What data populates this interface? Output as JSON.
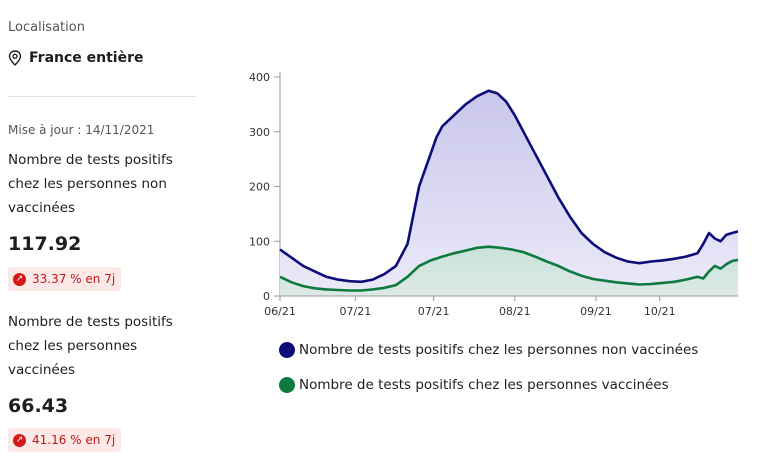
{
  "location": {
    "label": "Localisation",
    "value": "France entière",
    "icon": "map-pin-icon"
  },
  "update": "Mise à jour : 14/11/2021",
  "indicators": [
    {
      "title_lines": [
        "Nombre de tests positifs",
        "chez les personnes non",
        "vaccinées"
      ],
      "value": "117.92",
      "change": "33.37 % en 7j"
    },
    {
      "title_lines": [
        "Nombre de tests positifs",
        "chez les personnes",
        "vaccinées"
      ],
      "value": "66.43",
      "change": "41.16 % en 7j"
    }
  ],
  "colors": {
    "unvaccinated": "#0d0d7a",
    "vaccinated": "#0e7a3f",
    "unvaccinated_fill": "#c9c6ec",
    "vaccinated_fill": "#c9e2da",
    "badge_red": "#d21a1a"
  },
  "chart_data": {
    "type": "area",
    "ylim": [
      0,
      400
    ],
    "yticks": [
      0,
      100,
      200,
      300,
      400
    ],
    "xlim": [
      0,
      158
    ],
    "xticks": [
      {
        "label": "06/21",
        "x": 0
      },
      {
        "label": "07/21",
        "x": 26
      },
      {
        "label": "07/21",
        "x": 53
      },
      {
        "label": "08/21",
        "x": 81
      },
      {
        "label": "09/21",
        "x": 109
      },
      {
        "label": "10/21",
        "x": 131
      }
    ],
    "series": [
      {
        "name": "Nombre de tests positifs chez les personnes non vaccinées",
        "points": [
          [
            0,
            85
          ],
          [
            4,
            70
          ],
          [
            8,
            55
          ],
          [
            12,
            45
          ],
          [
            16,
            35
          ],
          [
            20,
            30
          ],
          [
            24,
            27
          ],
          [
            28,
            26
          ],
          [
            32,
            30
          ],
          [
            36,
            40
          ],
          [
            40,
            55
          ],
          [
            44,
            95
          ],
          [
            48,
            200
          ],
          [
            50,
            230
          ],
          [
            52,
            260
          ],
          [
            54,
            290
          ],
          [
            56,
            310
          ],
          [
            60,
            330
          ],
          [
            64,
            350
          ],
          [
            68,
            365
          ],
          [
            72,
            375
          ],
          [
            75,
            370
          ],
          [
            78,
            355
          ],
          [
            81,
            330
          ],
          [
            84,
            300
          ],
          [
            88,
            260
          ],
          [
            92,
            220
          ],
          [
            96,
            180
          ],
          [
            100,
            145
          ],
          [
            104,
            115
          ],
          [
            108,
            95
          ],
          [
            112,
            80
          ],
          [
            116,
            70
          ],
          [
            120,
            63
          ],
          [
            124,
            60
          ],
          [
            128,
            63
          ],
          [
            132,
            65
          ],
          [
            136,
            68
          ],
          [
            140,
            72
          ],
          [
            144,
            78
          ],
          [
            146,
            95
          ],
          [
            148,
            115
          ],
          [
            150,
            105
          ],
          [
            152,
            100
          ],
          [
            154,
            112
          ],
          [
            156,
            115
          ],
          [
            158,
            118
          ]
        ]
      },
      {
        "name": "Nombre de tests positifs chez les personnes vaccinées",
        "points": [
          [
            0,
            35
          ],
          [
            4,
            25
          ],
          [
            8,
            18
          ],
          [
            12,
            14
          ],
          [
            16,
            12
          ],
          [
            20,
            11
          ],
          [
            24,
            10
          ],
          [
            28,
            10
          ],
          [
            32,
            12
          ],
          [
            36,
            15
          ],
          [
            40,
            20
          ],
          [
            44,
            35
          ],
          [
            48,
            55
          ],
          [
            52,
            65
          ],
          [
            56,
            72
          ],
          [
            60,
            78
          ],
          [
            64,
            83
          ],
          [
            68,
            88
          ],
          [
            72,
            90
          ],
          [
            76,
            88
          ],
          [
            80,
            85
          ],
          [
            84,
            80
          ],
          [
            88,
            72
          ],
          [
            92,
            63
          ],
          [
            96,
            55
          ],
          [
            100,
            45
          ],
          [
            104,
            37
          ],
          [
            108,
            31
          ],
          [
            112,
            28
          ],
          [
            116,
            25
          ],
          [
            120,
            23
          ],
          [
            124,
            21
          ],
          [
            128,
            22
          ],
          [
            132,
            24
          ],
          [
            136,
            26
          ],
          [
            140,
            30
          ],
          [
            144,
            35
          ],
          [
            146,
            32
          ],
          [
            148,
            45
          ],
          [
            150,
            55
          ],
          [
            152,
            50
          ],
          [
            154,
            58
          ],
          [
            156,
            64
          ],
          [
            158,
            66
          ]
        ]
      }
    ]
  }
}
